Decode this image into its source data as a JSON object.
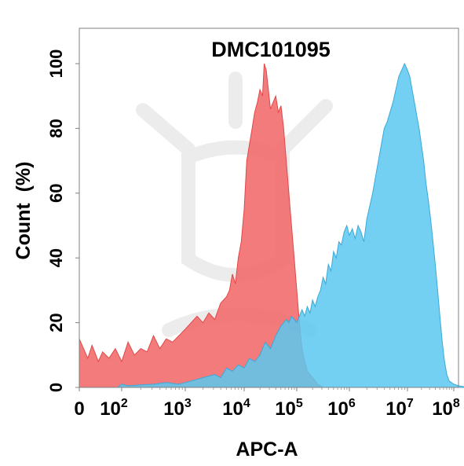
{
  "chart_data": {
    "type": "area",
    "title": "DMC101095",
    "xlabel": "APC-A",
    "ylabel": "Count  (%)",
    "ylim": [
      0,
      100
    ],
    "x_scale": "biexponential",
    "x_ticks": [
      {
        "base": "0",
        "exp": ""
      },
      {
        "base": "10",
        "exp": "2"
      },
      {
        "base": "10",
        "exp": "3"
      },
      {
        "base": "10",
        "exp": "4"
      },
      {
        "base": "10",
        "exp": "5"
      },
      {
        "base": "10",
        "exp": "6"
      },
      {
        "base": "10",
        "exp": "7"
      },
      {
        "base": "10",
        "exp": "8"
      }
    ],
    "y_ticks": [
      "0",
      "20",
      "40",
      "60",
      "80",
      "100"
    ],
    "grid": false,
    "legend": "none",
    "series": [
      {
        "color": "#f26d6d",
        "stroke": "#e04848",
        "opacity": 0.9,
        "points": [
          [
            0,
            15
          ],
          [
            0.1,
            12
          ],
          [
            0.2,
            9
          ],
          [
            0.3,
            13
          ],
          [
            0.45,
            8
          ],
          [
            0.55,
            11
          ],
          [
            0.7,
            9
          ],
          [
            0.85,
            12
          ],
          [
            1.0,
            8
          ],
          [
            1.1,
            14
          ],
          [
            1.2,
            10
          ],
          [
            1.3,
            12
          ],
          [
            1.4,
            11
          ],
          [
            1.5,
            16
          ],
          [
            1.6,
            12
          ],
          [
            1.7,
            15
          ],
          [
            1.8,
            14
          ],
          [
            1.9,
            16
          ],
          [
            2.0,
            18
          ],
          [
            2.1,
            20
          ],
          [
            2.2,
            22
          ],
          [
            2.3,
            20
          ],
          [
            2.4,
            23
          ],
          [
            2.5,
            21
          ],
          [
            2.6,
            26
          ],
          [
            2.7,
            28
          ],
          [
            2.75,
            30
          ],
          [
            2.8,
            35
          ],
          [
            2.85,
            32
          ],
          [
            2.9,
            40
          ],
          [
            2.95,
            45
          ],
          [
            3.0,
            55
          ],
          [
            3.05,
            70
          ],
          [
            3.1,
            75
          ],
          [
            3.15,
            80
          ],
          [
            3.2,
            85
          ],
          [
            3.25,
            88
          ],
          [
            3.3,
            92
          ],
          [
            3.35,
            90
          ],
          [
            3.38,
            100
          ],
          [
            3.42,
            98
          ],
          [
            3.46,
            92
          ],
          [
            3.5,
            86
          ],
          [
            3.55,
            88
          ],
          [
            3.6,
            90
          ],
          [
            3.65,
            85
          ],
          [
            3.7,
            87
          ],
          [
            3.75,
            80
          ],
          [
            3.8,
            70
          ],
          [
            3.85,
            60
          ],
          [
            3.9,
            50
          ],
          [
            3.95,
            40
          ],
          [
            4.0,
            30
          ],
          [
            4.05,
            20
          ],
          [
            4.1,
            12
          ],
          [
            4.15,
            8
          ],
          [
            4.2,
            5
          ],
          [
            4.3,
            3
          ],
          [
            4.4,
            1
          ],
          [
            4.5,
            0
          ]
        ]
      },
      {
        "color": "#5bc8f0",
        "stroke": "#3aa9d9",
        "opacity": 0.85,
        "points": [
          [
            0.9,
            0
          ],
          [
            1.0,
            1
          ],
          [
            1.1,
            0.5
          ],
          [
            1.3,
            0.8
          ],
          [
            1.5,
            1
          ],
          [
            1.7,
            1.5
          ],
          [
            1.9,
            1
          ],
          [
            2.1,
            2
          ],
          [
            2.3,
            3
          ],
          [
            2.5,
            4
          ],
          [
            2.6,
            3
          ],
          [
            2.7,
            6
          ],
          [
            2.8,
            5
          ],
          [
            2.9,
            7
          ],
          [
            3.0,
            6
          ],
          [
            3.1,
            9
          ],
          [
            3.2,
            8
          ],
          [
            3.3,
            10
          ],
          [
            3.4,
            14
          ],
          [
            3.5,
            12
          ],
          [
            3.6,
            16
          ],
          [
            3.7,
            19
          ],
          [
            3.8,
            21
          ],
          [
            3.85,
            20
          ],
          [
            3.9,
            22
          ],
          [
            3.95,
            21
          ],
          [
            4.0,
            20
          ],
          [
            4.05,
            22
          ],
          [
            4.1,
            24
          ],
          [
            4.15,
            22
          ],
          [
            4.2,
            25
          ],
          [
            4.25,
            23
          ],
          [
            4.3,
            27
          ],
          [
            4.35,
            25
          ],
          [
            4.4,
            28
          ],
          [
            4.45,
            30
          ],
          [
            4.5,
            34
          ],
          [
            4.55,
            32
          ],
          [
            4.6,
            38
          ],
          [
            4.65,
            36
          ],
          [
            4.7,
            42
          ],
          [
            4.75,
            40
          ],
          [
            4.8,
            45
          ],
          [
            4.85,
            44
          ],
          [
            4.9,
            48
          ],
          [
            4.95,
            50
          ],
          [
            5.0,
            47
          ],
          [
            5.05,
            49
          ],
          [
            5.1,
            46
          ],
          [
            5.15,
            50
          ],
          [
            5.2,
            48
          ],
          [
            5.25,
            45
          ],
          [
            5.3,
            52
          ],
          [
            5.35,
            56
          ],
          [
            5.4,
            60
          ],
          [
            5.45,
            65
          ],
          [
            5.5,
            70
          ],
          [
            5.55,
            75
          ],
          [
            5.6,
            80
          ],
          [
            5.65,
            82
          ],
          [
            5.7,
            85
          ],
          [
            5.75,
            88
          ],
          [
            5.8,
            92
          ],
          [
            5.85,
            96
          ],
          [
            5.9,
            98
          ],
          [
            5.95,
            100
          ],
          [
            6.0,
            98
          ],
          [
            6.05,
            96
          ],
          [
            6.1,
            92
          ],
          [
            6.15,
            88
          ],
          [
            6.2,
            84
          ],
          [
            6.25,
            80
          ],
          [
            6.3,
            75
          ],
          [
            6.35,
            70
          ],
          [
            6.4,
            63
          ],
          [
            6.45,
            58
          ],
          [
            6.5,
            52
          ],
          [
            6.55,
            45
          ],
          [
            6.6,
            38
          ],
          [
            6.65,
            30
          ],
          [
            6.7,
            22
          ],
          [
            6.75,
            14
          ],
          [
            6.8,
            8
          ],
          [
            6.85,
            4
          ],
          [
            6.9,
            2
          ],
          [
            7.0,
            1
          ],
          [
            7.1,
            0.5
          ],
          [
            7.3,
            0
          ]
        ]
      }
    ]
  }
}
